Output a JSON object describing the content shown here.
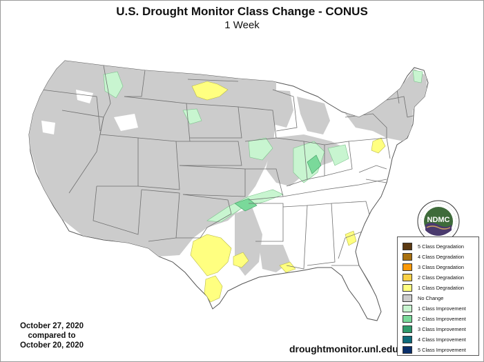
{
  "header": {
    "title": "U.S. Drought Monitor Class Change - CONUS",
    "subtitle": "1 Week"
  },
  "comparison": {
    "line1": "October 27, 2020",
    "line2": "compared to",
    "line3": "October 20, 2020"
  },
  "source_url": "droughtmonitor.unl.edu",
  "logo": {
    "text": "NDMC",
    "ring_text": "NATIONAL DROUGHT MITIGATION CENTER · UNIVERSITY OF NEBRASKA"
  },
  "legend": {
    "items": [
      {
        "label": "5 Class Degradation",
        "color": "#5c3a12"
      },
      {
        "label": "4 Class Degradation",
        "color": "#a8700f"
      },
      {
        "label": "3 Class Degradation",
        "color": "#fb9a0a"
      },
      {
        "label": "2 Class Degradation",
        "color": "#fbd147"
      },
      {
        "label": "1 Class Degradation",
        "color": "#ffff80"
      },
      {
        "label": "No Change",
        "color": "#cccccc"
      },
      {
        "label": "1 Class Improvement",
        "color": "#c8f5d0"
      },
      {
        "label": "2 Class Improvement",
        "color": "#7ad99a"
      },
      {
        "label": "3 Class Improvement",
        "color": "#2f9a6b"
      },
      {
        "label": "4 Class Improvement",
        "color": "#0e6b7a"
      },
      {
        "label": "5 Class Improvement",
        "color": "#0a2f6b"
      }
    ]
  },
  "colors": {
    "land_base": "#ffffff",
    "state_border": "#6e6e6e",
    "no_change": "#cccccc",
    "degradation_1": "#ffff80",
    "improvement_1": "#c8f5d0",
    "improvement_2": "#7ad99a"
  }
}
